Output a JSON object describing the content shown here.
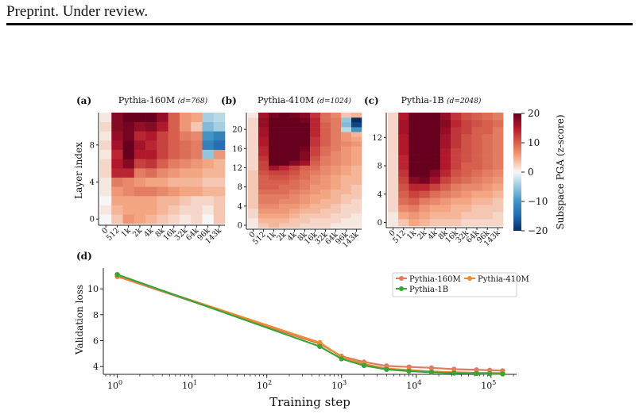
{
  "header": {
    "text": "Preprint. Under review."
  },
  "heatmaps": {
    "x_ticks": [
      "0",
      "512",
      "1k",
      "2k",
      "4k",
      "8k",
      "16k",
      "32k",
      "64k",
      "96k",
      "143k"
    ],
    "colorbar": {
      "label": "Subspace PGA (z-score)",
      "ticks": [
        "20",
        "10",
        "0",
        "−10",
        "−20"
      ],
      "range": [
        -20,
        20
      ],
      "colors": {
        "high": "#67001f",
        "mid": "#f7f7f7",
        "low": "#053061"
      }
    },
    "y_axis_label": "Layer index",
    "panels": [
      {
        "tag": "(a)",
        "title": "Pythia-160M",
        "dim": "(d=768)",
        "layers": 12,
        "yticks": [
          "8",
          "4",
          "0"
        ],
        "matrix": [
          [
            0,
            3,
            6,
            5,
            4,
            3,
            2,
            1,
            2,
            0,
            3
          ],
          [
            1,
            4,
            5,
            5,
            5,
            4,
            3,
            2,
            2,
            1,
            3
          ],
          [
            0,
            5,
            5,
            5,
            5,
            4,
            4,
            3,
            2,
            2,
            3
          ],
          [
            1,
            6,
            7,
            8,
            8,
            7,
            6,
            5,
            5,
            4,
            4
          ],
          [
            1,
            8,
            7,
            6,
            5,
            5,
            4,
            4,
            4,
            3,
            3
          ],
          [
            2,
            14,
            14,
            8,
            9,
            7,
            6,
            5,
            5,
            4,
            4
          ],
          [
            2,
            15,
            18,
            12,
            13,
            10,
            8,
            7,
            6,
            5,
            4
          ],
          [
            1,
            14,
            20,
            15,
            15,
            12,
            10,
            9,
            8,
            -5,
            6
          ],
          [
            2,
            16,
            20,
            16,
            14,
            12,
            10,
            9,
            8,
            -12,
            -14
          ],
          [
            1,
            17,
            19,
            14,
            15,
            12,
            10,
            8,
            7,
            -10,
            -12
          ],
          [
            2,
            18,
            19,
            17,
            18,
            15,
            10,
            6,
            3,
            -6,
            -4
          ],
          [
            1,
            18,
            20,
            20,
            20,
            17,
            10,
            6,
            5,
            -4,
            -3
          ]
        ]
      },
      {
        "tag": "(b)",
        "title": "Pythia-410M",
        "dim": "(d=1024)",
        "layers": 24,
        "yticks": [
          "20",
          "16",
          "12",
          "8",
          "4",
          "0"
        ],
        "matrix": [
          [
            1,
            3,
            4,
            3,
            3,
            2,
            2,
            2,
            1,
            1,
            1
          ],
          [
            1,
            4,
            4,
            4,
            3,
            3,
            2,
            2,
            2,
            1,
            1
          ],
          [
            2,
            5,
            5,
            5,
            4,
            3,
            3,
            3,
            2,
            2,
            1
          ],
          [
            2,
            6,
            6,
            6,
            5,
            4,
            4,
            3,
            3,
            2,
            2
          ],
          [
            3,
            7,
            7,
            6,
            6,
            5,
            4,
            4,
            3,
            2,
            2
          ],
          [
            3,
            8,
            8,
            7,
            7,
            6,
            5,
            4,
            4,
            3,
            2
          ],
          [
            3,
            8,
            8,
            8,
            7,
            6,
            5,
            5,
            4,
            3,
            3
          ],
          [
            3,
            9,
            9,
            9,
            8,
            7,
            6,
            5,
            4,
            4,
            3
          ],
          [
            3,
            10,
            10,
            9,
            9,
            8,
            6,
            6,
            5,
            4,
            3
          ],
          [
            3,
            10,
            10,
            10,
            9,
            8,
            7,
            6,
            5,
            4,
            4
          ],
          [
            3,
            10,
            11,
            11,
            10,
            9,
            7,
            6,
            5,
            4,
            4
          ],
          [
            3,
            11,
            12,
            12,
            11,
            9,
            8,
            7,
            6,
            5,
            4
          ],
          [
            2,
            12,
            16,
            14,
            12,
            10,
            9,
            7,
            6,
            5,
            4
          ],
          [
            2,
            12,
            20,
            20,
            18,
            16,
            10,
            8,
            7,
            6,
            5
          ],
          [
            2,
            13,
            20,
            20,
            20,
            18,
            11,
            8,
            7,
            6,
            5
          ],
          [
            2,
            14,
            20,
            20,
            20,
            18,
            12,
            9,
            7,
            6,
            5
          ],
          [
            2,
            14,
            20,
            20,
            20,
            19,
            12,
            9,
            8,
            6,
            5
          ],
          [
            2,
            15,
            20,
            20,
            20,
            20,
            13,
            10,
            8,
            7,
            6
          ],
          [
            2,
            15,
            20,
            20,
            20,
            20,
            13,
            10,
            8,
            6,
            5
          ],
          [
            2,
            16,
            20,
            20,
            20,
            20,
            14,
            10,
            8,
            6,
            4
          ],
          [
            2,
            16,
            20,
            20,
            20,
            20,
            14,
            10,
            8,
            -3,
            -10
          ],
          [
            2,
            17,
            20,
            20,
            20,
            20,
            14,
            10,
            8,
            -6,
            -18
          ],
          [
            2,
            17,
            20,
            20,
            20,
            19,
            14,
            9,
            8,
            -5,
            -20
          ],
          [
            1,
            16,
            19,
            20,
            19,
            18,
            13,
            9,
            7,
            3,
            4
          ]
        ]
      },
      {
        "tag": "(c)",
        "title": "Pythia-1B",
        "dim": "(d=2048)",
        "layers": 16,
        "yticks": [
          "12",
          "8",
          "4",
          "0"
        ],
        "matrix": [
          [
            1,
            3,
            5,
            4,
            3,
            3,
            3,
            2,
            2,
            2,
            2
          ],
          [
            1,
            5,
            6,
            5,
            4,
            4,
            4,
            3,
            3,
            3,
            2
          ],
          [
            2,
            7,
            8,
            6,
            5,
            5,
            4,
            4,
            3,
            3,
            3
          ],
          [
            2,
            9,
            10,
            8,
            7,
            6,
            5,
            5,
            4,
            4,
            3
          ],
          [
            2,
            10,
            12,
            11,
            9,
            8,
            7,
            6,
            5,
            5,
            4
          ],
          [
            2,
            11,
            14,
            14,
            12,
            10,
            8,
            7,
            7,
            6,
            5
          ],
          [
            2,
            12,
            18,
            19,
            16,
            12,
            10,
            9,
            8,
            7,
            6
          ],
          [
            2,
            13,
            20,
            20,
            18,
            14,
            11,
            10,
            9,
            8,
            7
          ],
          [
            2,
            14,
            20,
            20,
            20,
            15,
            12,
            10,
            10,
            9,
            8
          ],
          [
            2,
            14,
            20,
            20,
            20,
            15,
            12,
            11,
            10,
            9,
            8
          ],
          [
            2,
            15,
            20,
            20,
            20,
            15,
            12,
            11,
            10,
            9,
            8
          ],
          [
            2,
            15,
            20,
            20,
            20,
            16,
            13,
            11,
            10,
            9,
            8
          ],
          [
            2,
            15,
            20,
            20,
            20,
            16,
            13,
            11,
            10,
            9,
            8
          ],
          [
            2,
            16,
            20,
            20,
            20,
            17,
            13,
            12,
            10,
            10,
            8
          ],
          [
            2,
            16,
            20,
            20,
            20,
            18,
            14,
            12,
            11,
            10,
            9
          ],
          [
            2,
            15,
            20,
            20,
            20,
            17,
            13,
            11,
            10,
            9,
            8
          ]
        ]
      }
    ]
  },
  "chart_data": {
    "type": "line",
    "panel_tag": "(d)",
    "xscale": "log",
    "xlabel": "Training step",
    "ylabel": "Validation loss",
    "xlim": [
      0.65,
      220000
    ],
    "ylim": [
      3.4,
      11.6
    ],
    "xticks": [
      {
        "value": 1,
        "label": "10",
        "exp": "0"
      },
      {
        "value": 10,
        "label": "10",
        "exp": "1"
      },
      {
        "value": 100,
        "label": "10",
        "exp": "2"
      },
      {
        "value": 1000,
        "label": "10",
        "exp": "3"
      },
      {
        "value": 10000,
        "label": "10",
        "exp": "4"
      },
      {
        "value": 100000,
        "label": "10",
        "exp": "5"
      }
    ],
    "yticks": [
      4,
      6,
      8,
      10
    ],
    "legend_position": "top-right",
    "x": [
      1,
      512,
      1000,
      2000,
      4000,
      8000,
      16000,
      32000,
      64000,
      96000,
      143000
    ],
    "series": [
      {
        "name": "Pythia-160M",
        "color": "#e17a62",
        "values": [
          10.95,
          5.75,
          4.8,
          4.35,
          4.05,
          3.97,
          3.9,
          3.8,
          3.75,
          3.72,
          3.68
        ]
      },
      {
        "name": "Pythia-410M",
        "color": "#f08a2a",
        "values": [
          11.0,
          5.85,
          4.75,
          4.2,
          3.85,
          3.73,
          3.62,
          3.56,
          3.52,
          3.51,
          3.5
        ]
      },
      {
        "name": "Pythia-1B",
        "color": "#3aa33a",
        "values": [
          11.1,
          5.55,
          4.6,
          4.08,
          3.78,
          3.65,
          3.56,
          3.49,
          3.46,
          3.44,
          3.43
        ]
      }
    ]
  }
}
